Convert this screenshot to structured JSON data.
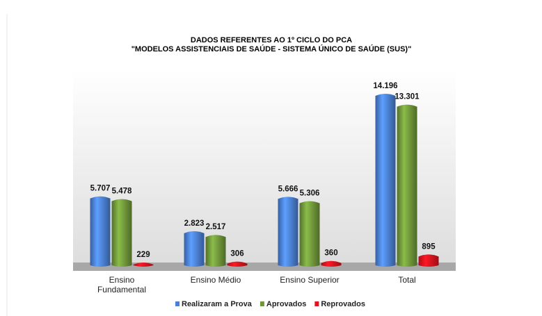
{
  "chart_data": {
    "type": "bar",
    "title": "DADOS REFERENTES AO  1º CICLO DO PCA",
    "subtitle": "\"MODELOS ASSISTENCIAIS  DE SAÚDE - SISTEMA ÚNICO DE SAÚDE (SUS)\"",
    "categories": [
      "Ensino Fundamental",
      "Ensino Médio",
      "Ensino Superior",
      "Total"
    ],
    "series": [
      {
        "name": "Realizaram a Prova",
        "color": "#4a7fd6",
        "values": [
          5707,
          2823,
          5666,
          14196
        ],
        "value_labels": [
          "5.707",
          "2.823",
          "5.666",
          "14.196"
        ]
      },
      {
        "name": "Aprovados",
        "color": "#6f963a",
        "values": [
          5478,
          2517,
          5306,
          13301
        ],
        "value_labels": [
          "5.478",
          "2.517",
          "5.306",
          "13.301"
        ]
      },
      {
        "name": "Reprovados",
        "color": "#e0141e",
        "values": [
          229,
          306,
          360,
          895
        ],
        "value_labels": [
          "229",
          "306",
          "360",
          "895"
        ]
      }
    ],
    "legend": "bottom"
  }
}
